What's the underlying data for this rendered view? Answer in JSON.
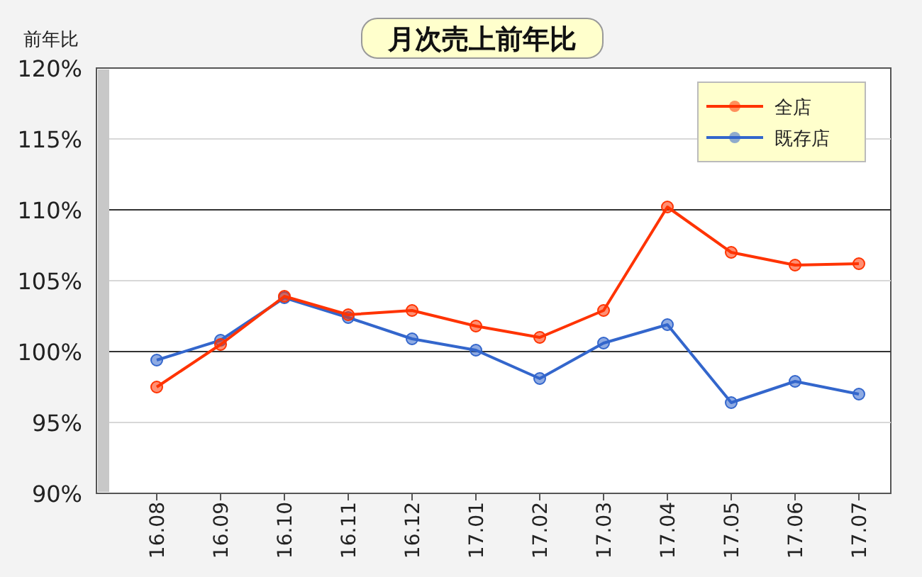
{
  "chart_data": {
    "type": "line",
    "title": "月次売上前年比",
    "ylabel": "前年比",
    "categories": [
      "16.08",
      "16.09",
      "16.10",
      "16.11",
      "16.12",
      "17.01",
      "17.02",
      "17.03",
      "17.04",
      "17.05",
      "17.06",
      "17.07"
    ],
    "series": [
      {
        "name": "全店",
        "color": "#ff3300",
        "values": [
          97.5,
          100.5,
          103.9,
          102.6,
          102.9,
          101.8,
          101.0,
          102.9,
          110.2,
          107.0,
          106.1,
          106.2
        ]
      },
      {
        "name": "既存店",
        "color": "#3366cc",
        "values": [
          99.4,
          100.8,
          103.8,
          102.4,
          100.9,
          100.1,
          98.1,
          100.6,
          101.9,
          96.4,
          97.9,
          97.0
        ]
      }
    ],
    "ylim": [
      90,
      120
    ],
    "yticks": [
      {
        "value": 90,
        "label": "90%"
      },
      {
        "value": 95,
        "label": "95%"
      },
      {
        "value": 100,
        "label": "100%"
      },
      {
        "value": 105,
        "label": "105%"
      },
      {
        "value": 110,
        "label": "110%"
      },
      {
        "value": 115,
        "label": "115%"
      },
      {
        "value": 120,
        "label": "120%"
      }
    ],
    "grid": "y",
    "legend": "top right",
    "marker": "circle"
  }
}
